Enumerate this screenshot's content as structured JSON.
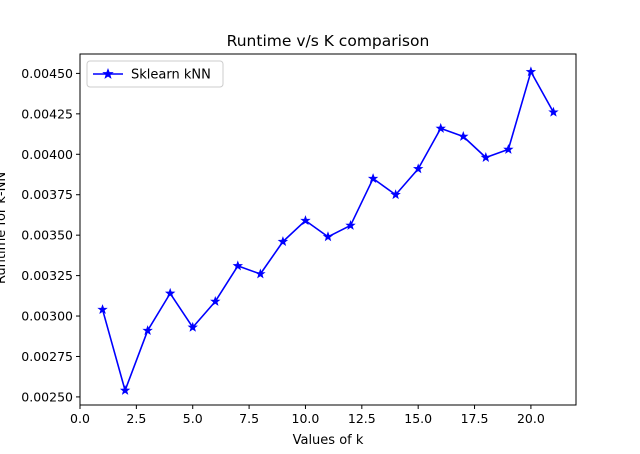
{
  "chart_data": {
    "type": "line",
    "title": "Runtime v/s K comparison",
    "xlabel": "Values of k",
    "ylabel": "Runtime for k-NN",
    "xlim": [
      0.0,
      22.0
    ],
    "ylim": [
      0.00245,
      0.00462
    ],
    "xticks": [
      0.0,
      2.5,
      5.0,
      7.5,
      10.0,
      12.5,
      15.0,
      17.5,
      20.0
    ],
    "xtick_labels": [
      "0.0",
      "2.5",
      "5.0",
      "7.5",
      "10.0",
      "12.5",
      "15.0",
      "17.5",
      "20.0"
    ],
    "yticks": [
      0.0025,
      0.00275,
      0.003,
      0.00325,
      0.0035,
      0.00375,
      0.004,
      0.00425,
      0.0045
    ],
    "ytick_labels": [
      "0.00250",
      "0.00275",
      "0.00300",
      "0.00325",
      "0.00350",
      "0.00375",
      "0.00400",
      "0.00425",
      "0.00450"
    ],
    "grid": false,
    "legend_position": "upper-left",
    "series": [
      {
        "name": "Sklearn kNN",
        "color": "#0000ff",
        "marker": "star",
        "x": [
          1,
          2,
          3,
          4,
          5,
          6,
          7,
          8,
          9,
          10,
          11,
          12,
          13,
          14,
          15,
          16,
          17,
          18,
          19,
          20,
          21
        ],
        "y": [
          0.00304,
          0.00254,
          0.00291,
          0.00314,
          0.00293,
          0.00309,
          0.00331,
          0.00326,
          0.00346,
          0.00359,
          0.00349,
          0.00356,
          0.00385,
          0.00375,
          0.00391,
          0.00416,
          0.00411,
          0.00398,
          0.00403,
          0.00451,
          0.00426
        ]
      }
    ]
  }
}
